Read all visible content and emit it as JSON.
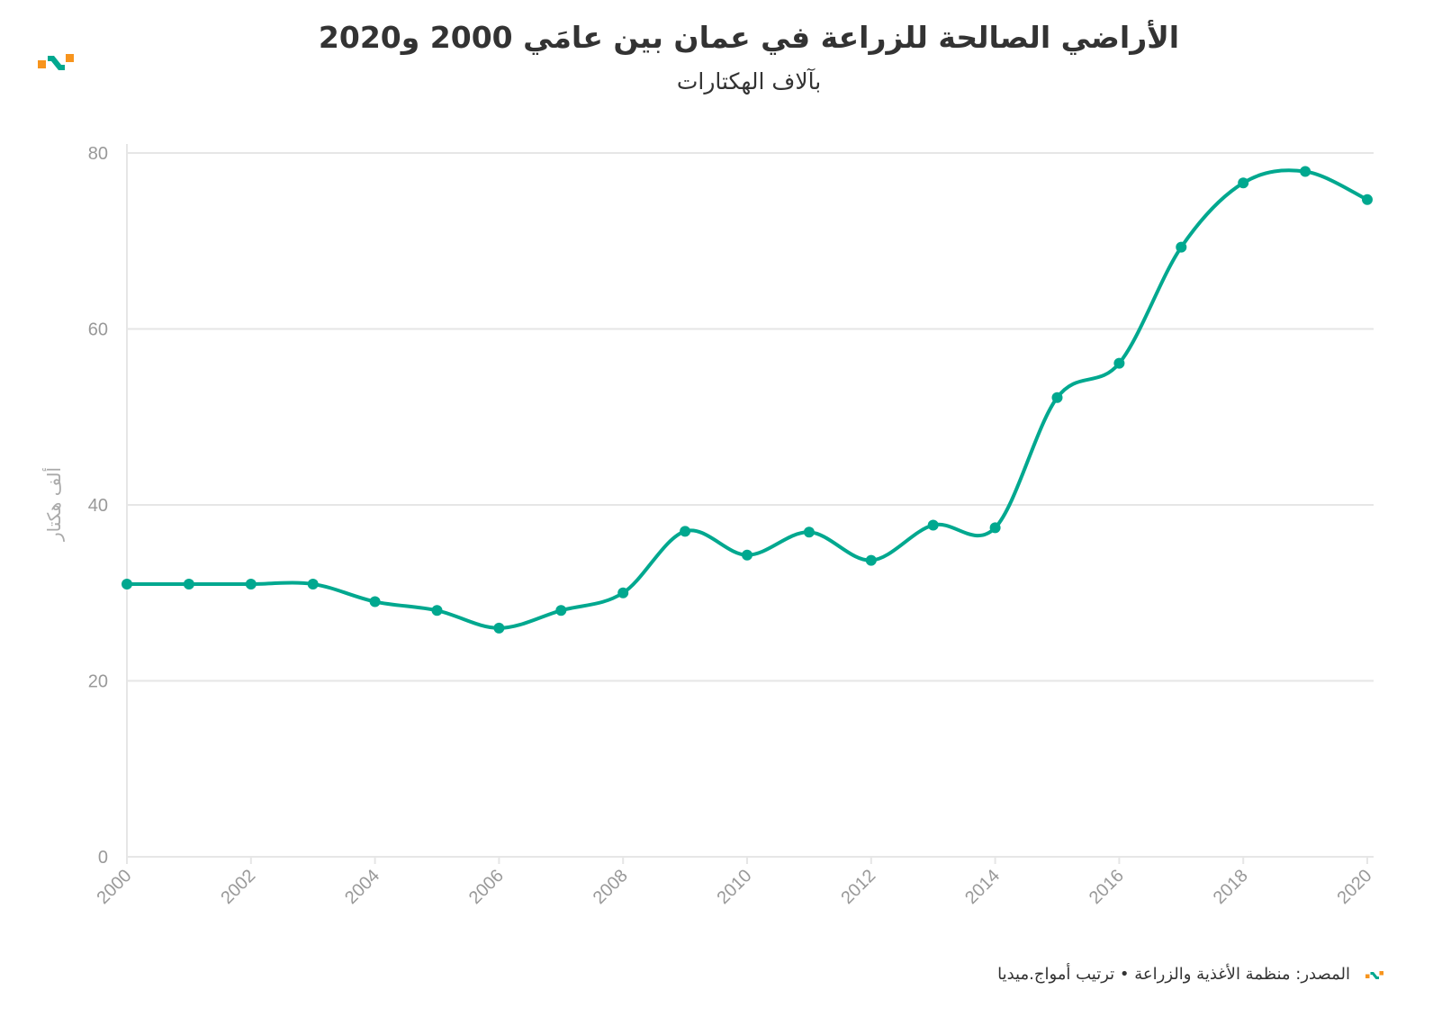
{
  "chart_data": {
    "type": "line",
    "title": "الأراضي الصالحة للزراعة في عمان بين عامَي 2000 و2020",
    "subtitle": "بآلاف الهكتارات",
    "ylabel": "ألف هكتار",
    "xlabel": "",
    "x": [
      2000,
      2001,
      2002,
      2003,
      2004,
      2005,
      2006,
      2007,
      2008,
      2009,
      2010,
      2011,
      2012,
      2013,
      2014,
      2015,
      2016,
      2017,
      2018,
      2019,
      2020
    ],
    "series": [
      {
        "name": "الأراضي الصالحة للزراعة",
        "values": [
          31,
          31,
          31,
          31,
          29,
          28,
          26,
          28,
          30,
          37,
          34.3,
          36.9,
          33.7,
          37.7,
          37.4,
          52.2,
          56.1,
          69.3,
          76.6,
          77.9,
          74.7
        ],
        "color": "#00a88f"
      }
    ],
    "xticks": [
      "2000",
      "2002",
      "2004",
      "2006",
      "2008",
      "2010",
      "2012",
      "2014",
      "2016",
      "2018",
      "2020"
    ],
    "yticks": [
      "0",
      "20",
      "40",
      "60",
      "80"
    ],
    "ylim": [
      0,
      80
    ],
    "xlim": [
      2000,
      2020
    ],
    "grid": true
  },
  "footer": "المصدر: منظمة الأغذية والزراعة • ترتيب أمواج.ميديا",
  "colors": {
    "accent": "#00a88f",
    "logo_orange": "#f7941d",
    "grid": "#e6e6e6",
    "axis_text": "#999999"
  }
}
